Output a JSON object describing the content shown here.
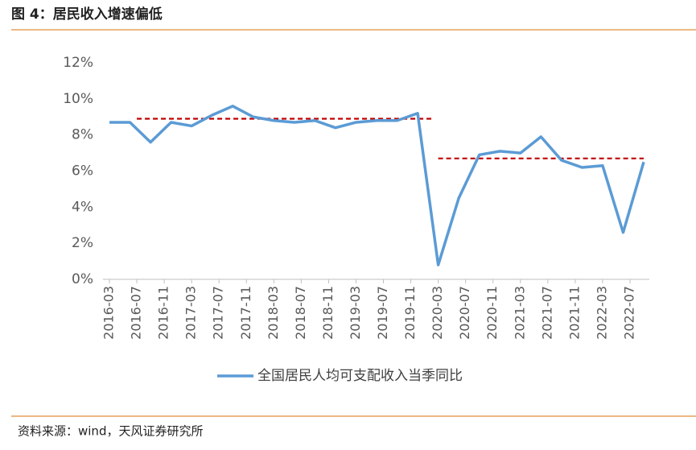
{
  "chart_data": {
    "type": "line",
    "title": "图 4：居民收入增速偏低",
    "source": "资料来源：wind，天风证券研究所",
    "x": [
      "2016-03",
      "2016-06",
      "2016-09",
      "2016-12",
      "2017-03",
      "2017-06",
      "2017-09",
      "2017-12",
      "2018-03",
      "2018-06",
      "2018-09",
      "2018-12",
      "2019-03",
      "2019-06",
      "2019-09",
      "2019-12",
      "2020-03",
      "2020-06",
      "2020-09",
      "2020-12",
      "2021-03",
      "2021-06",
      "2021-09",
      "2021-12",
      "2022-03",
      "2022-06",
      "2022-09"
    ],
    "series": [
      {
        "name": "全国居民人均可支配收入当季同比",
        "color": "#5b9bd5",
        "values": [
          8.7,
          8.7,
          7.6,
          8.7,
          8.5,
          9.1,
          9.6,
          9.0,
          8.8,
          8.7,
          8.8,
          8.4,
          8.7,
          8.8,
          8.8,
          9.2,
          0.8,
          4.5,
          6.9,
          7.1,
          7.0,
          7.9,
          6.6,
          6.2,
          6.3,
          2.6,
          6.5
        ]
      }
    ],
    "reference_lines": [
      {
        "start": "2016-07",
        "end": "2020-02",
        "value": 8.9,
        "color": "#c00000"
      },
      {
        "start": "2020-03",
        "end": "2022-09",
        "value": 6.7,
        "color": "#c00000"
      }
    ],
    "xlim": [
      "2016-03",
      "2022-09"
    ],
    "xticks": [
      "2016-03",
      "2016-07",
      "2016-11",
      "2017-03",
      "2017-07",
      "2017-11",
      "2018-03",
      "2018-07",
      "2018-11",
      "2019-03",
      "2019-07",
      "2019-11",
      "2020-03",
      "2020-07",
      "2020-11",
      "2021-03",
      "2021-07",
      "2021-11",
      "2022-03",
      "2022-07"
    ],
    "ylim": [
      0,
      12
    ],
    "yticks": [
      {
        "value": 0,
        "label": "0%"
      },
      {
        "value": 2,
        "label": "2%"
      },
      {
        "value": 4,
        "label": "4%"
      },
      {
        "value": 6,
        "label": "6%"
      },
      {
        "value": 8,
        "label": "8%"
      },
      {
        "value": 10,
        "label": "10%"
      },
      {
        "value": 12,
        "label": "12%"
      }
    ],
    "grid": false
  }
}
